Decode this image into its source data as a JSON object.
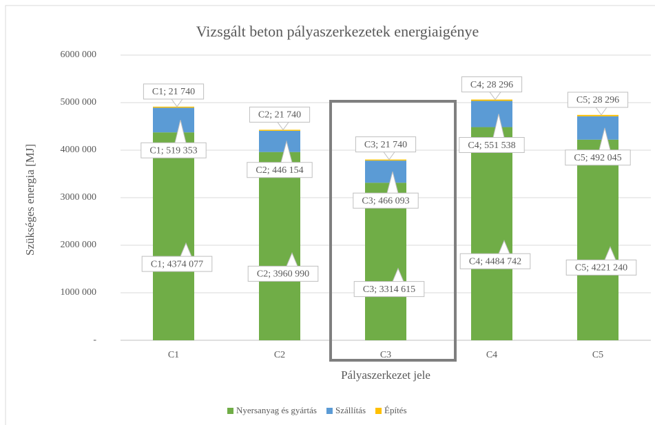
{
  "chart_data": {
    "type": "stacked_bar",
    "title": "Vizsgált beton pályaszerkezetek energiaigénye",
    "x_label": "Pályaszerkezet jele",
    "y_label": "Szükséges energia [MJ]",
    "categories": [
      "C1",
      "C2",
      "C3",
      "C4",
      "C5"
    ],
    "series": [
      {
        "name": "Nyersanyag és gyártás",
        "color": "#70ad47",
        "values": [
          4374077,
          3960990,
          3314615,
          4484742,
          4221240
        ],
        "value_labels": [
          "C1;  4374 077",
          "C2;  3960 990",
          "C3;  3314 615",
          "C4;  4484 742",
          "C5;  4221 240"
        ]
      },
      {
        "name": "Szállítás",
        "color": "#5b9bd5",
        "values": [
          519353,
          446154,
          466093,
          551538,
          492045
        ],
        "value_labels": [
          "C1;  519 353",
          "C2;  446 154",
          "C3;  466 093",
          "C4;  551 538",
          "C5;  492 045"
        ]
      },
      {
        "name": "Építés",
        "color": "#ffc000",
        "values": [
          21740,
          21740,
          21740,
          28296,
          28296
        ],
        "value_labels": [
          "C1;  21 740",
          "C2;  21 740",
          "C3;  21 740",
          "C4;  28 296",
          "C5;  28 296"
        ]
      }
    ],
    "ylim": [
      0,
      6000000
    ],
    "yticks": [
      {
        "value": 0,
        "label": "-"
      },
      {
        "value": 1000000,
        "label": "1000 000"
      },
      {
        "value": 2000000,
        "label": "2000 000"
      },
      {
        "value": 3000000,
        "label": "3000 000"
      },
      {
        "value": 4000000,
        "label": "4000 000"
      },
      {
        "value": 5000000,
        "label": "5000 000"
      },
      {
        "value": 6000000,
        "label": "6000 000"
      }
    ],
    "grid": true,
    "legend": "bottom"
  }
}
